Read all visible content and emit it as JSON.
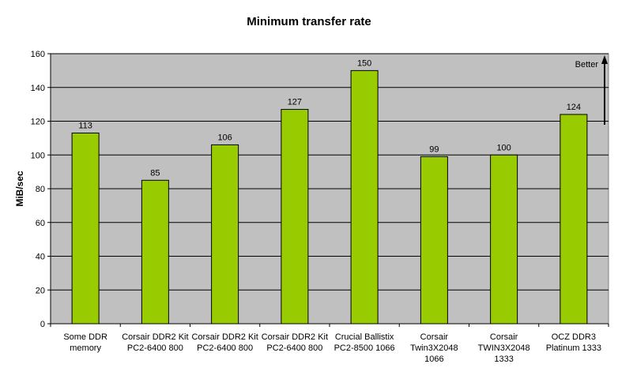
{
  "chart_data": {
    "type": "bar",
    "title": "Minimum transfer rate",
    "ylabel": "MiB/sec",
    "xlabel": "",
    "ylim": [
      0,
      160
    ],
    "yticks": [
      0,
      20,
      40,
      60,
      80,
      100,
      120,
      140,
      160
    ],
    "grid": true,
    "legend": "none",
    "bar_color": "#99cc00",
    "plot_background": "#c0c0c0",
    "categories": [
      [
        "Some DDR",
        "memory"
      ],
      [
        "Corsair DDR2 Kit",
        "PC2-6400 800"
      ],
      [
        "Corsair DDR2 Kit",
        "PC2-6400 800"
      ],
      [
        "Corsair DDR2 Kit",
        "PC2-6400 800"
      ],
      [
        "Crucial Ballistix",
        "PC2-8500 1066"
      ],
      [
        "Corsair",
        "Twin3X2048",
        "1066"
      ],
      [
        "Corsair",
        "TWIN3X2048",
        "1333"
      ],
      [
        "OCZ DDR3",
        "Platinum 1333"
      ]
    ],
    "values": [
      113,
      85,
      106,
      127,
      150,
      99,
      100,
      124
    ],
    "annotation": {
      "text": "Better",
      "arrow": "up"
    }
  }
}
